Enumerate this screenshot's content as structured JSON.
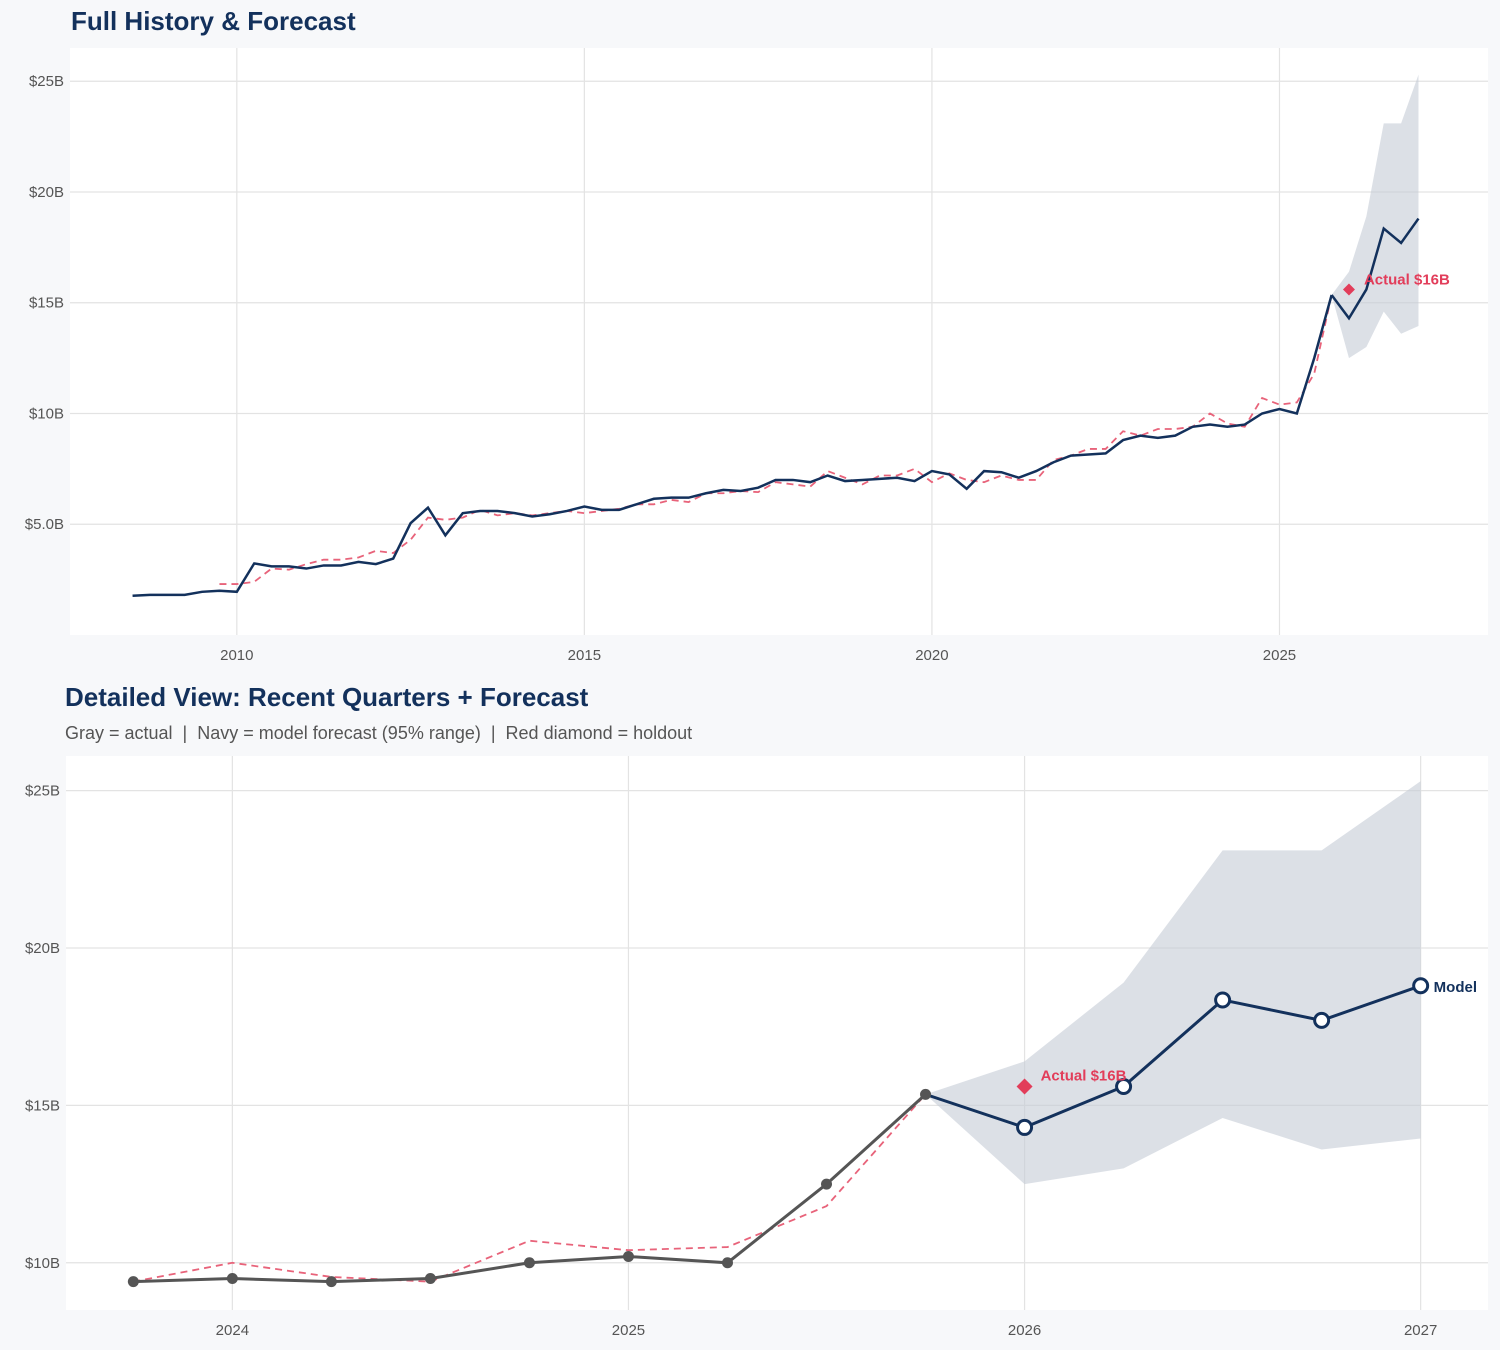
{
  "colors": {
    "actual_top": "#13315c",
    "actual_bottom": "#555555",
    "fitted": "#e8637a",
    "forecast": "#13315c",
    "band": "#c5ccd6",
    "holdout": "#e23d5a"
  },
  "top": {
    "title": "Full History & Forecast"
  },
  "bottom": {
    "title": "Detailed View: Recent Quarters + Forecast",
    "subtitle": "Gray = actual  |  Navy = model forecast (95% range)  |  Red diamond = holdout"
  },
  "chart_data": [
    {
      "type": "line",
      "title": "Full History & Forecast",
      "xlim": [
        2007.6,
        2028.0
      ],
      "ylim": [
        0,
        26.5
      ],
      "grid": true,
      "xticks": [
        2010,
        2015,
        2020,
        2025
      ],
      "xtick_labels": [
        "2010",
        "2015",
        "2020",
        "2025"
      ],
      "yticks": [
        5,
        10,
        15,
        20,
        25
      ],
      "ytick_labels": [
        "$5.0B",
        "$10B",
        "$15B",
        "$20B",
        "$25B"
      ],
      "actual": {
        "x_start": 2008.5,
        "step": 0.25,
        "values": [
          1.77,
          1.81,
          1.81,
          1.81,
          1.95,
          2.0,
          1.95,
          3.23,
          3.1,
          3.1,
          3.0,
          3.14,
          3.14,
          3.3,
          3.2,
          3.45,
          5.05,
          5.75,
          4.5,
          5.5,
          5.6,
          5.6,
          5.5,
          5.35,
          5.45,
          5.6,
          5.8,
          5.65,
          5.65,
          5.9,
          6.15,
          6.2,
          6.2,
          6.4,
          6.55,
          6.5,
          6.65,
          7.0,
          7.0,
          6.9,
          7.2,
          6.95,
          7.0,
          7.05,
          7.1,
          6.95,
          7.4,
          7.25,
          6.6,
          7.4,
          7.35,
          7.1,
          7.4,
          7.8,
          8.1,
          8.15,
          8.2,
          8.8,
          9.0,
          8.9,
          9.0,
          9.4,
          9.5,
          9.4,
          9.5,
          10.0,
          10.2,
          10.0,
          12.5,
          15.35
        ]
      },
      "fitted": {
        "x_start": 2009.75,
        "step": 0.25,
        "values": [
          2.3,
          2.3,
          2.4,
          3.0,
          2.95,
          3.2,
          3.4,
          3.4,
          3.5,
          3.8,
          3.7,
          4.3,
          5.3,
          5.2,
          5.3,
          5.65,
          5.4,
          5.5,
          5.4,
          5.5,
          5.6,
          5.5,
          5.6,
          5.7,
          5.9,
          5.9,
          6.1,
          6.0,
          6.4,
          6.4,
          6.5,
          6.45,
          6.9,
          6.8,
          6.7,
          7.4,
          7.1,
          6.8,
          7.2,
          7.2,
          7.5,
          6.9,
          7.3,
          7.0,
          6.9,
          7.2,
          7.0,
          7.0,
          7.9,
          8.1,
          8.4,
          8.4,
          9.2,
          9.0,
          9.3,
          9.3,
          9.4,
          10.0,
          9.55,
          9.4,
          10.7,
          10.4,
          10.5,
          11.8,
          15.35
        ]
      },
      "forecast": {
        "x": [
          2025.75,
          2026.0,
          2026.25,
          2026.5,
          2026.75,
          2027.0
        ],
        "values": [
          15.35,
          14.3,
          15.6,
          18.35,
          17.7,
          18.8
        ],
        "lower": [
          15.35,
          12.5,
          13.0,
          14.6,
          13.6,
          13.95
        ],
        "upper": [
          15.35,
          16.4,
          18.9,
          23.1,
          23.1,
          25.3
        ]
      },
      "holdout": {
        "x": 2026.0,
        "value": 15.6,
        "label": "Actual $16B"
      }
    },
    {
      "type": "line",
      "title": "Detailed View: Recent Quarters + Forecast",
      "xlim": [
        2023.58,
        2027.17
      ],
      "ylim": [
        8.5,
        26.1
      ],
      "grid": true,
      "xticks": [
        2024,
        2025,
        2026,
        2027
      ],
      "xtick_labels": [
        "2024",
        "2025",
        "2026",
        "2027"
      ],
      "yticks": [
        10,
        15,
        20,
        25
      ],
      "ytick_labels": [
        "$10B",
        "$15B",
        "$20B",
        "$25B"
      ],
      "actual": {
        "x_start": 2023.75,
        "step": 0.25,
        "values": [
          9.4,
          9.5,
          9.4,
          9.5,
          10.0,
          10.2,
          10.0,
          12.5,
          15.35
        ]
      },
      "fitted": {
        "x_start": 2023.75,
        "step": 0.25,
        "values": [
          9.4,
          10.0,
          9.55,
          9.4,
          10.7,
          10.4,
          10.5,
          11.8,
          15.35
        ]
      },
      "forecast": {
        "x": [
          2025.75,
          2026.0,
          2026.25,
          2026.5,
          2026.75,
          2027.0
        ],
        "values": [
          15.35,
          14.3,
          15.6,
          18.35,
          17.7,
          18.8
        ],
        "lower": [
          15.35,
          12.5,
          13.0,
          14.6,
          13.6,
          13.95
        ],
        "upper": [
          15.35,
          16.4,
          18.9,
          23.1,
          23.1,
          25.3
        ],
        "label": "Model"
      },
      "holdout": {
        "x": 2026.0,
        "value": 15.6,
        "label": "Actual $16B"
      }
    }
  ]
}
